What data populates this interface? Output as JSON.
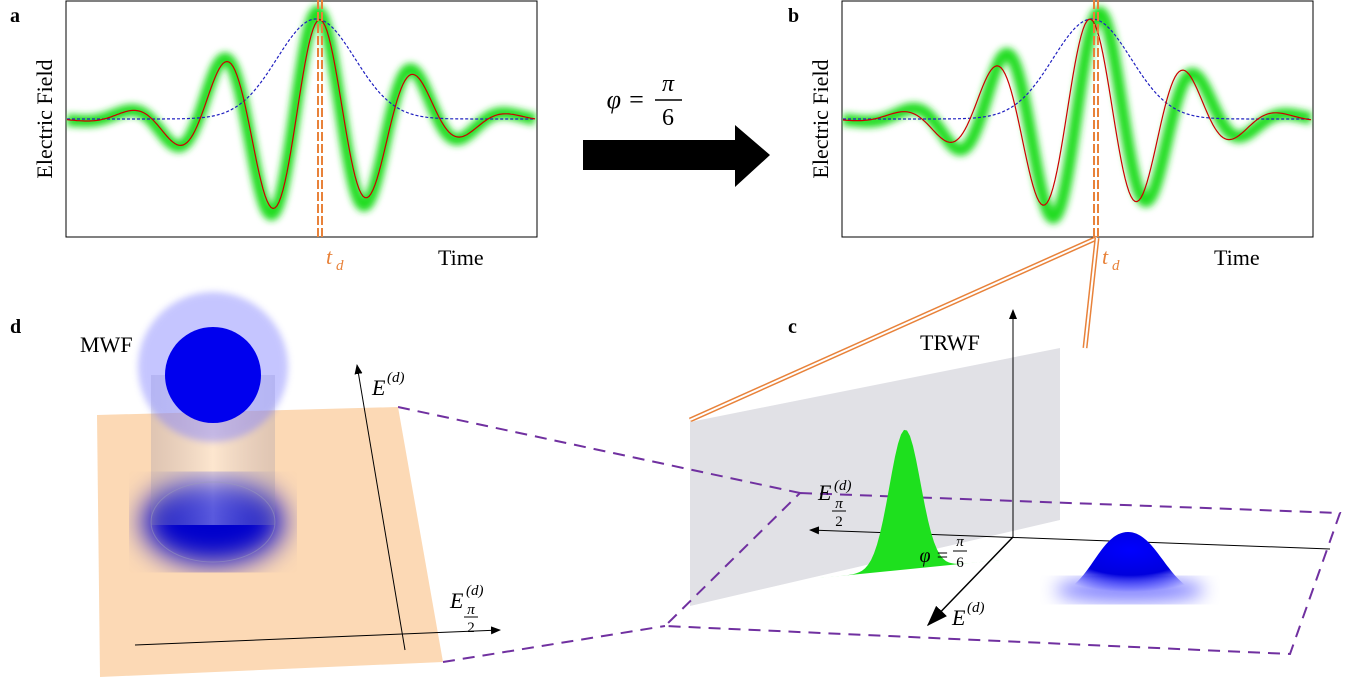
{
  "panels": [
    {
      "label": "a",
      "y_label": "Electric Field",
      "x_label": "Time",
      "marker": {
        "symbol": "t",
        "subscript": "d"
      }
    },
    {
      "label": "b",
      "y_label": "Electric Field",
      "x_label": "Time",
      "marker": {
        "symbol": "t",
        "subscript": "d"
      }
    }
  ],
  "transform": {
    "lhs": "φ =",
    "numerator": "π",
    "denominator": "6"
  },
  "panel_c": {
    "label": "c",
    "title": "TRWF",
    "axis_d": {
      "symbol": "E",
      "superscript": "(d)"
    },
    "axis_pi2": {
      "symbol": "E",
      "superscript": "(d)",
      "sub_numerator": "π",
      "sub_denominator": "2"
    },
    "phase": {
      "lhs": "φ =",
      "numerator": "π",
      "denominator": "6"
    }
  },
  "panel_d": {
    "label": "d",
    "title": "MWF",
    "axis_d": {
      "symbol": "E",
      "superscript": "(d)"
    },
    "axis_pi2": {
      "symbol": "E",
      "superscript": "(d)",
      "sub_numerator": "π",
      "sub_denominator": "2"
    }
  }
}
